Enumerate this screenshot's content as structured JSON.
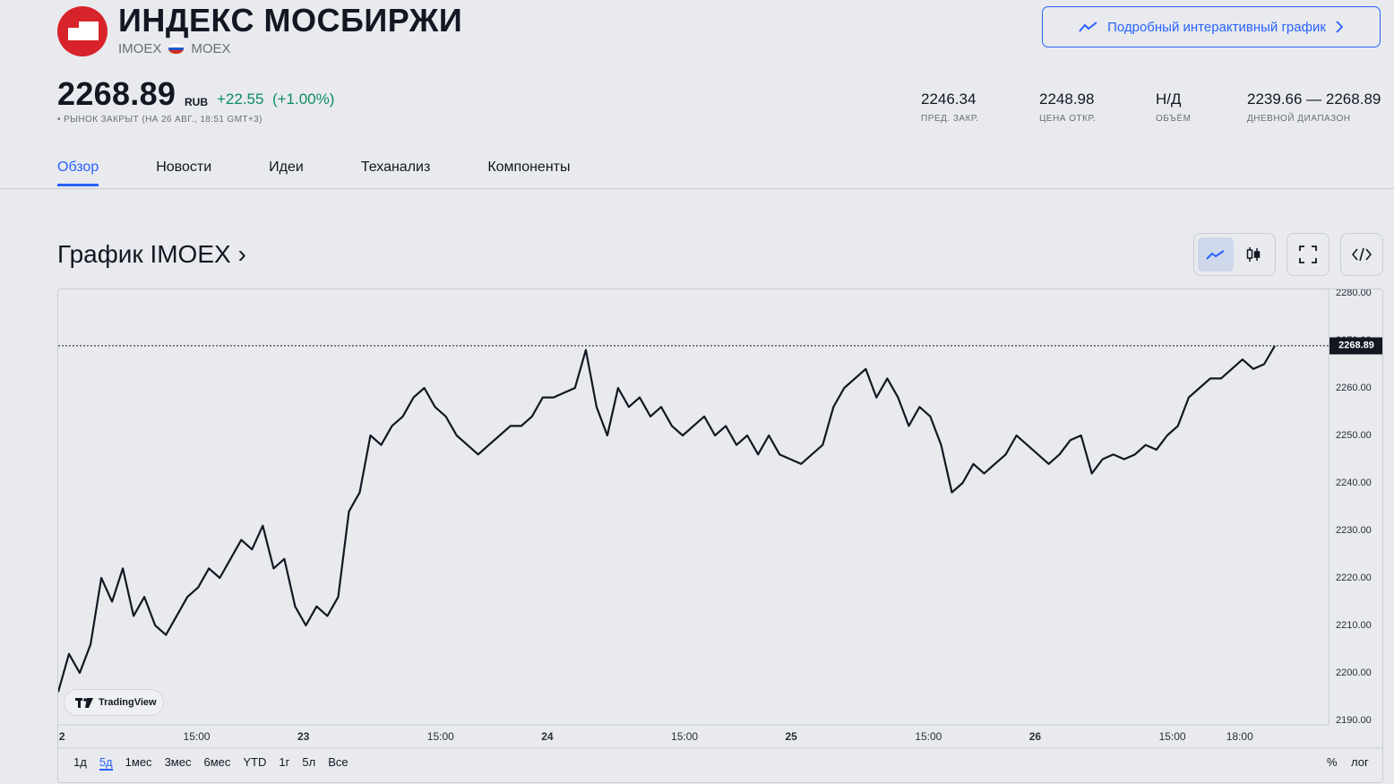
{
  "header": {
    "title": "ИНДЕКС МОСБИРЖИ",
    "ticker": "IMOEX",
    "exchange": "MOEX",
    "price": "2268.89",
    "currency": "RUB",
    "change": "+22.55",
    "change_pct": "(+1.00%)",
    "market_status": "• РЫНОК ЗАКРЫТ (НА 26 АВГ., 18:51 GMT+3)",
    "interactive_chart_button": "Подробный интерактивный график"
  },
  "stats": [
    {
      "value": "2246.34",
      "label": "ПРЕД. ЗАКР."
    },
    {
      "value": "2248.98",
      "label": "ЦЕНА ОТКР."
    },
    {
      "value": "Н/Д",
      "label": "ОБЪЁМ"
    },
    {
      "value": "2239.66 — 2268.89",
      "label": "ДНЕВНОЙ ДИАПАЗОН"
    }
  ],
  "tabs": [
    "Обзор",
    "Новости",
    "Идеи",
    "Теханализ",
    "Компоненты"
  ],
  "chart_section": {
    "title": "График IMOEX ›"
  },
  "chart": {
    "tradingview_label": "TradingView",
    "last_price_label": "2268.89",
    "ranges": [
      "1д",
      "5д",
      "1мес",
      "3мес",
      "6мес",
      "YTD",
      "1г",
      "5л",
      "Все"
    ],
    "active_range": "5д",
    "options": {
      "percent": "%",
      "log": "лог"
    },
    "colors": {
      "line": "#131722",
      "accent": "#2962ff",
      "positive": "#0b8c5f",
      "brand": "#d9232b"
    }
  },
  "chart_data": {
    "type": "line",
    "ylim": [
      2190,
      2280
    ],
    "yticks": [
      "2190.00",
      "2200.00",
      "2210.00",
      "2220.00",
      "2230.00",
      "2240.00",
      "2250.00",
      "2260.00",
      "2270.00",
      "2280.00"
    ],
    "xticks": [
      "2",
      "15:00",
      "23",
      "15:00",
      "24",
      "15:00",
      "25",
      "15:00",
      "26",
      "15:00",
      "18:00"
    ],
    "last_value": 2268.89,
    "series": [
      {
        "values": [
          2196,
          2204,
          2200,
          2206,
          2220,
          2215,
          2222,
          2212,
          2216,
          2210,
          2208,
          2212,
          2216,
          2218,
          2222,
          2220,
          2224,
          2228,
          2226,
          2231,
          2222,
          2224,
          2214,
          2210,
          2214,
          2212,
          2216,
          2234,
          2238,
          2250,
          2248,
          2252,
          2254,
          2258,
          2260,
          2256,
          2254,
          2250,
          2248,
          2246,
          2248,
          2250,
          2252,
          2252,
          2254,
          2258,
          2258,
          2259,
          2260,
          2268,
          2256,
          2250,
          2260,
          2256,
          2258,
          2254,
          2256,
          2252,
          2250,
          2252,
          2254,
          2250,
          2252,
          2248,
          2250,
          2246,
          2250,
          2246,
          2245,
          2244,
          2246,
          2248,
          2256,
          2260,
          2262,
          2264,
          2258,
          2262,
          2258,
          2252,
          2256,
          2254,
          2248,
          2238,
          2240,
          2244,
          2242,
          2244,
          2246,
          2250,
          2248,
          2246,
          2244,
          2246,
          2249,
          2250,
          2242,
          2245,
          2246,
          2245,
          2246,
          2248,
          2247,
          2250,
          2252,
          2258,
          2260,
          2262,
          2262,
          2264,
          2266,
          2264,
          2265,
          2268.89
        ]
      }
    ]
  }
}
